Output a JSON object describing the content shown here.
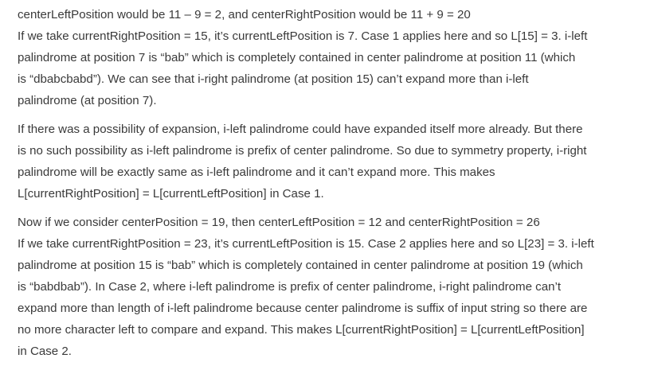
{
  "paragraphs": [
    {
      "lines": [
        "centerLeftPosition would be 11 – 9 = 2, and centerRightPosition would be 11 + 9 = 20",
        "If we take currentRightPosition = 15, it’s currentLeftPosition is 7. Case 1 applies here and so L[15] = 3. i-left",
        "palindrome at position 7 is “bab” which is completely contained in center palindrome at position 11 (which",
        "is “dbabcbabd”). We can see that i-right palindrome (at position 15) can’t expand more than i-left",
        "palindrome (at position 7)."
      ]
    },
    {
      "lines": [
        "If there was a possibility of expansion, i-left palindrome could have expanded itself more already. But there",
        "is no such possibility as i-left palindrome is prefix of center palindrome. So due to symmetry property, i-right",
        "palindrome will be exactly same as i-left palindrome and it can’t expand more. This makes",
        "L[currentRightPosition] = L[currentLeftPosition] in Case 1."
      ]
    },
    {
      "lines": [
        "Now if we consider centerPosition = 19, then centerLeftPosition = 12 and centerRightPosition = 26",
        "If we take currentRightPosition = 23, it’s currentLeftPosition is 15. Case 2 applies here and so L[23] = 3. i-left",
        "palindrome at position 15 is “bab” which is completely contained in center palindrome at position 19 (which",
        "is “babdbab”). In Case 2, where i-left palindrome is prefix of center palindrome, i-right palindrome can’t",
        "expand more than length of i-left palindrome because center palindrome is suffix of input string so there are",
        "no more character left to compare and expand. This makes L[currentRightPosition] = L[currentLeftPosition]",
        "in Case 2."
      ]
    }
  ]
}
